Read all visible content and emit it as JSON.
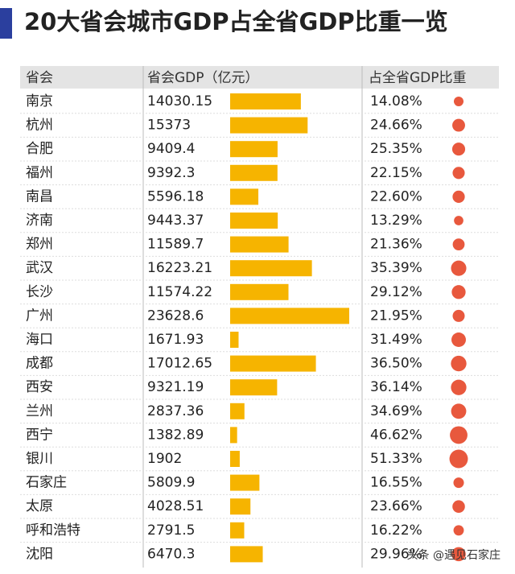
{
  "chart_data": {
    "type": "bar-table",
    "title": "20大省会城市GDP占全省GDP比重一览",
    "category_label": "省会",
    "categories": [
      "南京",
      "杭州",
      "合肥",
      "福州",
      "南昌",
      "济南",
      "郑州",
      "武汉",
      "长沙",
      "广州",
      "海口",
      "成都",
      "西安",
      "兰州",
      "西宁",
      "银川",
      "石家庄",
      "太原",
      "呼和浩特",
      "沈阳"
    ],
    "series": [
      {
        "name": "省会GDP（亿元）",
        "color": "#f6b400",
        "values": [
          14030.15,
          15373,
          9409.4,
          9392.3,
          5596.18,
          9443.37,
          11589.7,
          16223.21,
          11574.22,
          23628.6,
          1671.93,
          17012.65,
          9321.19,
          2837.36,
          1382.89,
          1902,
          5809.9,
          4028.51,
          2791.5,
          6470.3
        ]
      },
      {
        "name": "占全省GDP比重",
        "color": "#e8583d",
        "values": [
          14.08,
          24.66,
          25.35,
          22.15,
          22.6,
          13.29,
          21.36,
          35.39,
          29.12,
          21.95,
          31.49,
          36.5,
          36.14,
          34.69,
          46.62,
          51.33,
          16.55,
          23.66,
          16.22,
          29.96
        ],
        "value_labels": [
          "14.08%",
          "24.66%",
          "25.35%",
          "22.15%",
          "22.60%",
          "13.29%",
          "21.36%",
          "35.39%",
          "29.12%",
          "21.95%",
          "31.49%",
          "36.50%",
          "36.14%",
          "34.69%",
          "46.62%",
          "51.33%",
          "16.55%",
          "23.66%",
          "16.22%",
          "29.96%"
        ]
      }
    ],
    "watermark": "头条 @遇见石家庄"
  }
}
